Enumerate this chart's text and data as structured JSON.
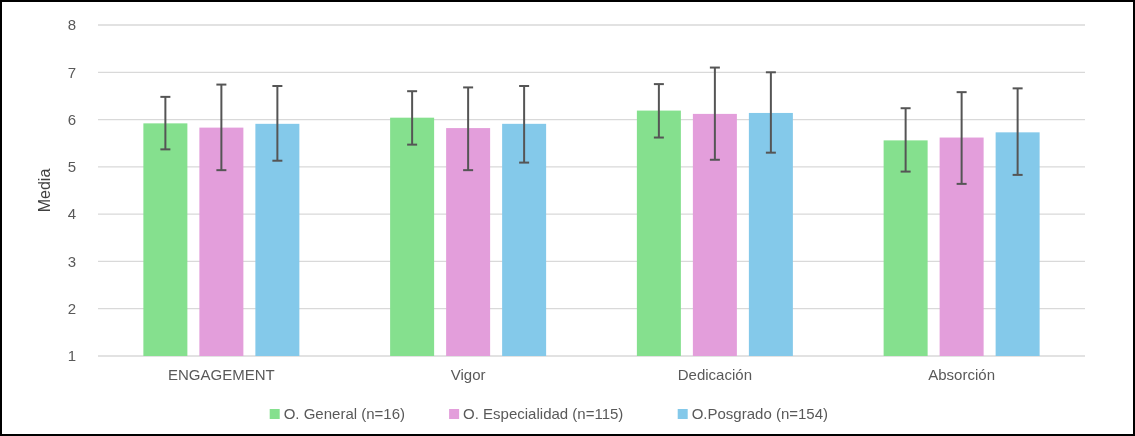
{
  "chart_data": {
    "type": "bar",
    "ylabel": "Media",
    "categories": [
      "ENGAGEMENT",
      "Vigor",
      "Dedicación",
      "Absorción"
    ],
    "ylim": [
      1,
      8
    ],
    "yticks": [
      1,
      2,
      3,
      4,
      5,
      6,
      7,
      8
    ],
    "grid": "y",
    "legend": "bottom",
    "series": [
      {
        "name": "O. General (n=16)",
        "color": "#85e08e",
        "values": [
          5.92,
          6.04,
          6.19,
          5.56
        ],
        "errors": [
          [
            5.37,
            6.48
          ],
          [
            5.47,
            6.6
          ],
          [
            5.62,
            6.75
          ],
          [
            4.9,
            6.24
          ]
        ]
      },
      {
        "name": "O. Especialidad (n=115)",
        "color": "#e39edb",
        "values": [
          5.83,
          5.82,
          6.12,
          5.62
        ],
        "errors": [
          [
            4.93,
            6.74
          ],
          [
            4.93,
            6.68
          ],
          [
            5.15,
            7.1
          ],
          [
            4.64,
            6.58
          ]
        ]
      },
      {
        "name": "O.Posgrado (n=154)",
        "color": "#84c9ea",
        "values": [
          5.91,
          5.91,
          6.14,
          5.73
        ],
        "errors": [
          [
            5.13,
            6.71
          ],
          [
            5.09,
            6.71
          ],
          [
            5.3,
            7.0
          ],
          [
            4.83,
            6.66
          ]
        ]
      }
    ]
  }
}
